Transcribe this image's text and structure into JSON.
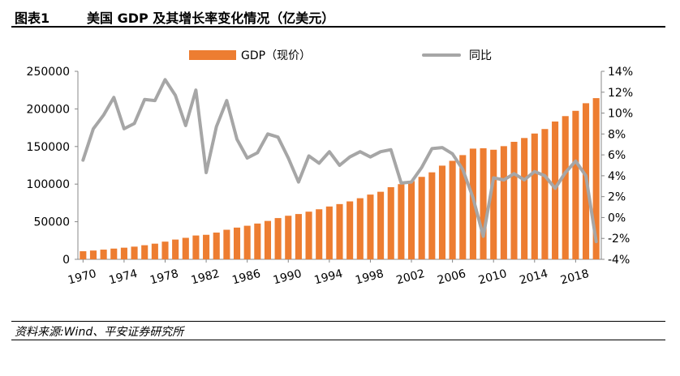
{
  "figure": {
    "label": "图表1",
    "title": "美国 GDP 及其增长率变化情况（亿美元）",
    "source": "资料来源:Wind、平安证券研究所"
  },
  "chart_data": {
    "type": "bar+line",
    "legend": [
      "GDP（现价）",
      "同比"
    ],
    "colors": {
      "bar": "#ED7D31",
      "line": "#A6A6A6"
    },
    "years": [
      1970,
      1971,
      1972,
      1973,
      1974,
      1975,
      1976,
      1977,
      1978,
      1979,
      1980,
      1981,
      1982,
      1983,
      1984,
      1985,
      1986,
      1987,
      1988,
      1989,
      1990,
      1991,
      1992,
      1993,
      1994,
      1995,
      1996,
      1997,
      1998,
      1999,
      2000,
      2001,
      2002,
      2003,
      2004,
      2005,
      2006,
      2007,
      2008,
      2009,
      2010,
      2011,
      2012,
      2013,
      2014,
      2015,
      2016,
      2017,
      2018,
      2019,
      2020
    ],
    "x_tick_labels": [
      "1970",
      "1974",
      "1978",
      "1982",
      "1986",
      "1990",
      "1994",
      "1998",
      "2002",
      "2006",
      "2010",
      "2014",
      "2018"
    ],
    "series": [
      {
        "name": "GDP（现价）",
        "axis": "left",
        "values": [
          10735,
          11679,
          12889,
          14258,
          15454,
          16849,
          18734,
          20817,
          23515,
          26275,
          28572,
          31670,
          32596,
          35541,
          39311,
          42179,
          44633,
          47568,
          51036,
          54842,
          57932,
          60219,
          63364,
          66543,
          70232,
          73433,
          77009,
          81238,
          86080,
          89826,
          95920,
          99954,
          103981,
          109631,
          115656,
          124550,
          130978,
          138574,
          147186,
          147693,
          145719,
          150480,
          156243,
          161300,
          167266,
          173250,
          183238,
          190427,
          197437,
          207544,
          214332
        ]
      },
      {
        "name": "同比",
        "axis": "right",
        "unit": "%",
        "values": [
          5.5,
          8.5,
          9.8,
          11.5,
          8.5,
          9.0,
          11.3,
          11.2,
          13.2,
          11.7,
          8.8,
          12.2,
          4.3,
          8.7,
          11.2,
          7.5,
          5.7,
          6.2,
          8.0,
          7.7,
          5.7,
          3.4,
          5.9,
          5.2,
          6.3,
          5.0,
          5.8,
          6.3,
          5.8,
          6.3,
          6.5,
          3.3,
          3.4,
          4.8,
          6.6,
          6.7,
          6.1,
          4.6,
          1.9,
          -1.8,
          3.8,
          3.6,
          4.2,
          3.6,
          4.4,
          4.0,
          2.8,
          4.3,
          5.4,
          4.0,
          -2.3
        ]
      }
    ],
    "y_left": {
      "range": [
        0,
        250000
      ],
      "ticks": [
        "0",
        "50000",
        "100000",
        "150000",
        "200000",
        "250000"
      ]
    },
    "y_right": {
      "range": [
        -4,
        14
      ],
      "ticks": [
        "-4%",
        "-2%",
        "0%",
        "2%",
        "4%",
        "6%",
        "8%",
        "10%",
        "12%",
        "14%"
      ]
    }
  }
}
